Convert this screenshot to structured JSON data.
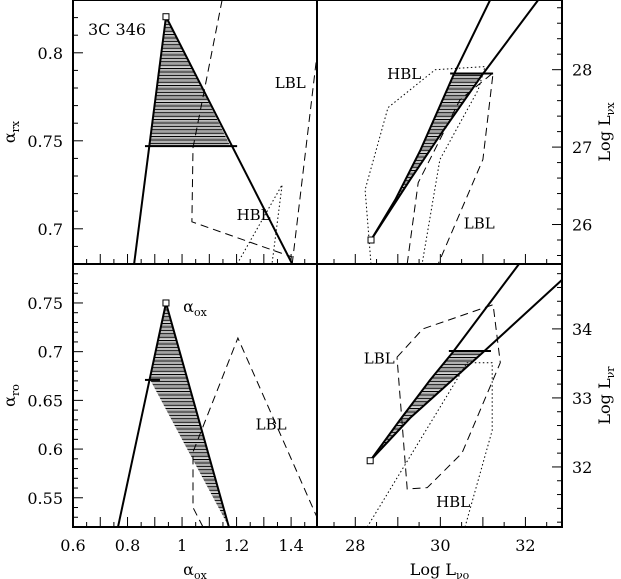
{
  "figure": {
    "source_label": "3C 346"
  },
  "chart_data": [
    {
      "id": "tl",
      "type": "line",
      "xlabel": {
        "main": "α",
        "sub": "ox"
      },
      "ylabel": {
        "main": "α",
        "sub": "rx"
      },
      "xlim": [
        0.6,
        1.495
      ],
      "ylim": [
        0.68,
        0.83
      ],
      "xticks": {
        "minor": 0.05,
        "labels": []
      },
      "yticks": {
        "minor": 0.01,
        "side": "left",
        "labels": [
          0.7,
          0.75,
          0.8
        ]
      },
      "square": [
        0.941,
        0.8205
      ],
      "solid_lines": [
        [
          [
            0.941,
            0.8205
          ],
          [
            0.824,
            0.68
          ]
        ],
        [
          [
            0.941,
            0.8205
          ],
          [
            1.404,
            0.68
          ]
        ]
      ],
      "error_bar": {
        "y": 0.747,
        "x": [
          0.864,
          1.202
        ]
      },
      "hatch": [
        [
          0.941,
          0.8205
        ],
        [
          0.877,
          0.747
        ],
        [
          1.177,
          0.747
        ]
      ],
      "dashed": [
        [
          [
            1.147,
            0.83
          ],
          [
            1.04,
            0.746
          ],
          [
            1.036,
            0.704
          ],
          [
            1.404,
            0.684
          ]
        ],
        [
          [
            1.404,
            0.68
          ],
          [
            1.495,
            0.799
          ]
        ]
      ],
      "dotted": [
        [
          [
            1.202,
            0.68
          ],
          [
            1.367,
            0.725
          ],
          [
            1.33,
            0.68
          ]
        ]
      ],
      "annotations": [
        {
          "text": "LBL",
          "x": 1.34,
          "y": 0.78
        },
        {
          "text": "HBL",
          "x": 1.2,
          "y": 0.705
        }
      ]
    },
    {
      "id": "tr",
      "type": "line",
      "ylabel": {
        "main": "Log L",
        "sub": "νx"
      },
      "xlim": [
        27.1,
        32.86
      ],
      "ylim": [
        25.49,
        28.9
      ],
      "xticks": {
        "minor": 0.5,
        "labels": []
      },
      "yticks": {
        "minor": 0.2,
        "side": "right",
        "labels": [
          26,
          27,
          28
        ]
      },
      "square": [
        28.37,
        25.8
      ],
      "solid_lines": [
        [
          [
            28.37,
            25.8
          ],
          [
            28.94,
            26.32
          ],
          [
            29.53,
            26.96
          ],
          [
            30.31,
            27.93
          ],
          [
            31.17,
            28.9
          ]
        ],
        [
          [
            28.37,
            25.8
          ],
          [
            29.29,
            26.58
          ],
          [
            30.0,
            27.16
          ],
          [
            30.98,
            27.93
          ],
          [
            32.3,
            28.9
          ]
        ]
      ],
      "error_bar": {
        "y": 27.95,
        "x": [
          30.23,
          31.24
        ]
      },
      "hatch": [
        [
          28.37,
          25.8
        ],
        [
          28.94,
          26.32
        ],
        [
          29.53,
          26.96
        ],
        [
          30.32,
          27.95
        ],
        [
          31.0,
          27.95
        ],
        [
          30.0,
          27.16
        ],
        [
          29.29,
          26.58
        ]
      ],
      "dashed": [
        [
          [
            29.22,
            25.49
          ],
          [
            29.48,
            26.54
          ],
          [
            30.46,
            27.61
          ],
          [
            31.24,
            27.96
          ],
          [
            31.0,
            26.84
          ],
          [
            29.95,
            25.49
          ]
        ]
      ],
      "dotted": [
        [
          [
            28.37,
            25.49
          ],
          [
            28.23,
            26.45
          ],
          [
            28.77,
            27.51
          ],
          [
            29.88,
            28.0
          ],
          [
            31.05,
            28.04
          ],
          [
            30.89,
            27.74
          ],
          [
            29.99,
            26.84
          ],
          [
            29.57,
            25.49
          ]
        ]
      ],
      "annotations": [
        {
          "text": "HBL",
          "x": 28.75,
          "y": 27.88
        },
        {
          "text": "LBL",
          "x": 30.55,
          "y": 25.95
        }
      ]
    },
    {
      "id": "bl",
      "type": "line",
      "xlabel": {
        "main": "α",
        "sub": "ox"
      },
      "ylabel": {
        "main": "α",
        "sub": "ro"
      },
      "xlim": [
        0.6,
        1.495
      ],
      "ylim": [
        0.52,
        0.79
      ],
      "xticks": {
        "minor": 0.05,
        "labels": [
          0.6,
          0.8,
          1,
          1.2,
          1.4
        ]
      },
      "yticks": {
        "minor": 0.01,
        "side": "left",
        "labels": [
          0.55,
          0.6,
          0.65,
          0.7,
          0.75
        ]
      },
      "square": [
        0.941,
        0.75
      ],
      "solid_lines": [
        [
          [
            0.941,
            0.75
          ],
          [
            0.765,
            0.52
          ]
        ],
        [
          [
            0.941,
            0.75
          ],
          [
            1.172,
            0.52
          ]
        ]
      ],
      "error_bar": {
        "y": 0.671,
        "x": [
          0.864,
          0.919
        ]
      },
      "hatch": [
        [
          0.941,
          0.75
        ],
        [
          0.883,
          0.671
        ],
        [
          1.172,
          0.52
        ]
      ],
      "dashed": [
        [
          [
            1.077,
            0.52
          ],
          [
            1.04,
            0.54
          ],
          [
            1.04,
            0.597
          ],
          [
            1.205,
            0.714
          ],
          [
            1.495,
            0.53
          ]
        ]
      ],
      "dotted": [],
      "annotations": [
        {
          "text": "LBL",
          "x": 1.27,
          "y": 0.62
        }
      ]
    },
    {
      "id": "br",
      "type": "line",
      "xlabel": {
        "main": "Log L",
        "sub": "νo"
      },
      "ylabel": {
        "main": "Log L",
        "sub": "νr"
      },
      "xlim": [
        27.1,
        32.86
      ],
      "ylim": [
        31.13,
        34.94
      ],
      "xticks": {
        "minor": 0.5,
        "labels": [
          28,
          30,
          32
        ]
      },
      "yticks": {
        "minor": 0.2,
        "side": "right",
        "labels": [
          32,
          33,
          34
        ]
      },
      "square": [
        28.35,
        32.09
      ],
      "solid_lines": [
        [
          [
            28.35,
            32.09
          ],
          [
            29.05,
            32.68
          ],
          [
            29.76,
            33.26
          ],
          [
            30.29,
            33.66
          ],
          [
            31.85,
            34.94
          ]
        ],
        [
          [
            28.35,
            32.09
          ],
          [
            29.29,
            32.71
          ],
          [
            30.23,
            33.23
          ],
          [
            31.0,
            33.66
          ],
          [
            32.86,
            34.71
          ]
        ]
      ],
      "error_bar": {
        "y": 33.68,
        "x": [
          30.2,
          31.19
        ]
      },
      "hatch": [
        [
          28.35,
          32.09
        ],
        [
          29.05,
          32.68
        ],
        [
          29.76,
          33.26
        ],
        [
          30.3,
          33.68
        ],
        [
          31.03,
          33.68
        ],
        [
          30.23,
          33.23
        ],
        [
          29.29,
          32.71
        ]
      ],
      "dashed": [
        [
          [
            28.98,
            33.59
          ],
          [
            29.59,
            34.0
          ],
          [
            31.24,
            34.35
          ],
          [
            31.41,
            33.51
          ],
          [
            30.51,
            32.2
          ],
          [
            29.69,
            31.7
          ],
          [
            29.22,
            31.68
          ],
          [
            28.98,
            33.59
          ]
        ]
      ],
      "dotted": [
        [
          [
            28.28,
            31.13
          ],
          [
            30.63,
            33.51
          ],
          [
            31.22,
            33.51
          ],
          [
            31.22,
            32.53
          ],
          [
            30.58,
            31.13
          ]
        ]
      ],
      "annotations": [
        {
          "text": "LBL",
          "x": 28.2,
          "y": 33.5
        },
        {
          "text": "HBL",
          "x": 29.9,
          "y": 31.42
        }
      ]
    }
  ]
}
